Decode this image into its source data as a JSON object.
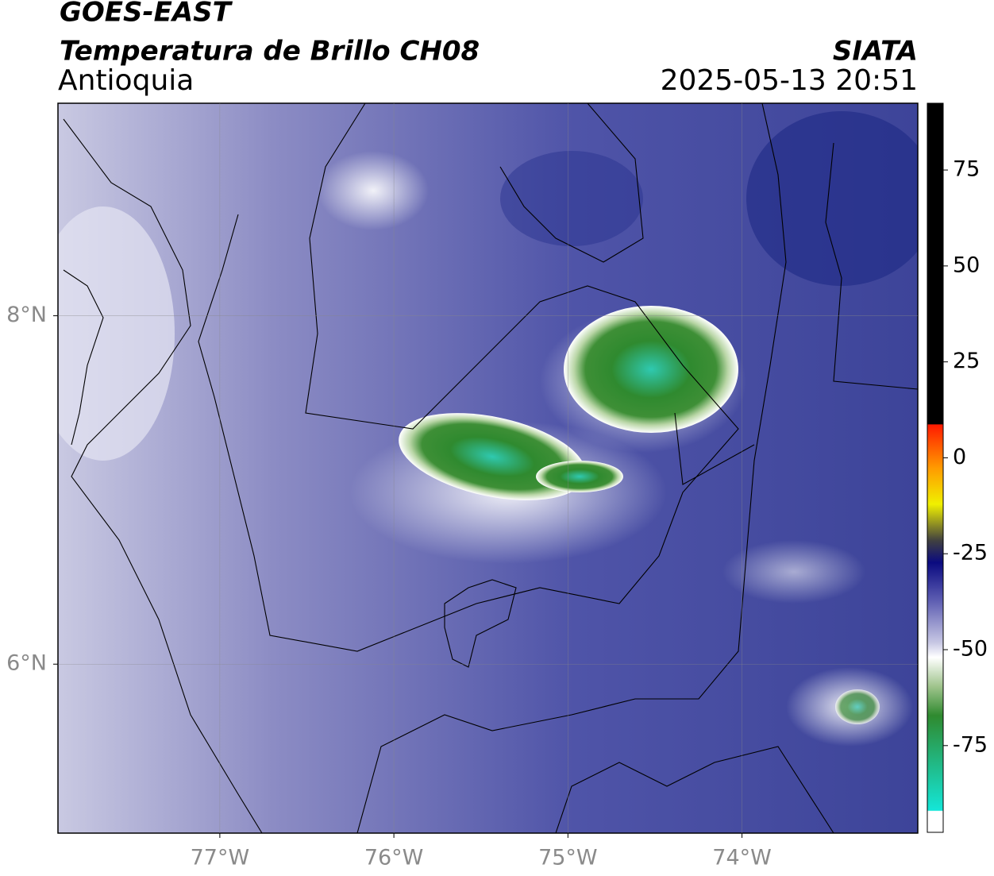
{
  "header": {
    "title": "GOES-EAST",
    "subtitle": "Temperatura de Brillo CH08",
    "region": "Antioquia",
    "source": "SIATA",
    "datetime": "2025-05-13 20:51"
  },
  "map": {
    "xlim": [
      -77.93,
      -72.99
    ],
    "ylim": [
      5.03,
      9.22
    ],
    "xticks": [
      {
        "value": -77,
        "label": "77°W"
      },
      {
        "value": -76,
        "label": "76°W"
      },
      {
        "value": -75,
        "label": "75°W"
      },
      {
        "value": -74,
        "label": "74°W"
      }
    ],
    "yticks": [
      {
        "value": 8,
        "label": "8°N"
      },
      {
        "value": 6,
        "label": "6°N"
      }
    ],
    "grid": true
  },
  "colorbar": {
    "clim": [
      -97.6,
      92.4
    ],
    "ticks": [
      75,
      50,
      25,
      0,
      -25,
      -50,
      -75
    ]
  }
}
